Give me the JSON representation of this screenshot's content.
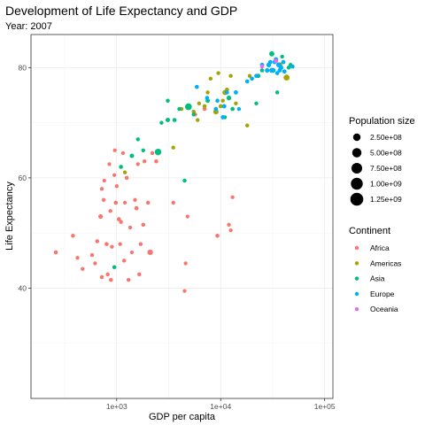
{
  "chart_data": {
    "type": "scatter",
    "title": "Development of Life Expectancy and GDP",
    "subtitle": "Year: 2007",
    "xlabel": "GDP per capita",
    "ylabel": "Life Expectancy",
    "x_scale": "log10",
    "xlim": [
      150,
      120000
    ],
    "ylim": [
      20,
      86
    ],
    "x_ticks": [
      {
        "value": 1000,
        "label": "1e+03"
      },
      {
        "value": 10000,
        "label": "1e+04"
      },
      {
        "value": 100000,
        "label": "1e+05"
      }
    ],
    "y_ticks": [
      {
        "value": 40,
        "label": "40"
      },
      {
        "value": 60,
        "label": "60"
      },
      {
        "value": 80,
        "label": "80"
      }
    ],
    "grid": true,
    "size_legend": {
      "title": "Population size",
      "entries": [
        {
          "value": 250000000,
          "label": "2.50e+08"
        },
        {
          "value": 500000000,
          "label": "5.00e+08"
        },
        {
          "value": 750000000,
          "label": "7.50e+08"
        },
        {
          "value": 1000000000,
          "label": "1.00e+09"
        },
        {
          "value": 1250000000,
          "label": "1.25e+09"
        }
      ]
    },
    "color_legend": {
      "title": "Continent",
      "entries": [
        {
          "name": "Africa",
          "color": "#F8766D"
        },
        {
          "name": "Americas",
          "color": "#A3A500"
        },
        {
          "name": "Asia",
          "color": "#00BF7D"
        },
        {
          "name": "Europe",
          "color": "#00B0F6"
        },
        {
          "name": "Oceania",
          "color": "#E76BF3"
        }
      ]
    },
    "series": [
      {
        "name": "Africa",
        "color": "#F8766D",
        "points": [
          [
            260,
            46.5,
            15
          ],
          [
            420,
            45.5,
            8
          ],
          [
            470,
            43.5,
            10
          ],
          [
            380,
            49.5,
            12
          ],
          [
            580,
            46.0,
            10
          ],
          [
            620,
            44.5,
            8
          ],
          [
            650,
            48.5,
            12
          ],
          [
            700,
            53.0,
            30
          ],
          [
            720,
            58.0,
            9
          ],
          [
            720,
            42.0,
            11
          ],
          [
            750,
            56.0,
            9
          ],
          [
            760,
            59.5,
            8
          ],
          [
            800,
            48.0,
            15
          ],
          [
            820,
            42.5,
            10
          ],
          [
            850,
            62.5,
            7
          ],
          [
            870,
            54.0,
            9
          ],
          [
            880,
            41.5,
            12
          ],
          [
            900,
            47.5,
            9
          ],
          [
            950,
            60.5,
            7
          ],
          [
            960,
            65.0,
            8
          ],
          [
            980,
            55.5,
            15
          ],
          [
            1000,
            58.5,
            10
          ],
          [
            1050,
            52.5,
            15
          ],
          [
            1080,
            48.0,
            9
          ],
          [
            1100,
            52.0,
            9
          ],
          [
            1150,
            64.5,
            8
          ],
          [
            1180,
            45.0,
            12
          ],
          [
            1200,
            55.5,
            7
          ],
          [
            1250,
            60.0,
            14
          ],
          [
            1300,
            41.5,
            10
          ],
          [
            1350,
            51.0,
            9
          ],
          [
            1400,
            46.5,
            7
          ],
          [
            1500,
            56.0,
            9
          ],
          [
            1550,
            54.5,
            20
          ],
          [
            1600,
            62.5,
            7
          ],
          [
            1650,
            42.5,
            11
          ],
          [
            1700,
            48.0,
            10
          ],
          [
            1800,
            51.5,
            12
          ],
          [
            1850,
            63.0,
            11
          ],
          [
            2000,
            55.5,
            12
          ],
          [
            2100,
            46.5,
            80
          ],
          [
            2200,
            64.5,
            10
          ],
          [
            2400,
            63.0,
            12
          ],
          [
            3500,
            55.5,
            10
          ],
          [
            4500,
            39.5,
            7
          ],
          [
            4600,
            44.5,
            8
          ],
          [
            4800,
            53.0,
            7
          ],
          [
            5700,
            71.5,
            8
          ],
          [
            7000,
            72.5,
            12
          ],
          [
            9300,
            49.5,
            15
          ],
          [
            12000,
            51.5,
            9
          ],
          [
            12500,
            50.5,
            7
          ],
          [
            13000,
            56.5,
            7
          ]
        ]
      },
      {
        "name": "Americas",
        "color": "#A3A500",
        "points": [
          [
            1200,
            61.0,
            10
          ],
          [
            3500,
            65.5,
            10
          ],
          [
            4200,
            72.5,
            10
          ],
          [
            5500,
            72.0,
            12
          ],
          [
            6000,
            70.5,
            10
          ],
          [
            6200,
            73.5,
            10
          ],
          [
            7000,
            73.0,
            15
          ],
          [
            7500,
            75.5,
            10
          ],
          [
            8000,
            78.0,
            10
          ],
          [
            9000,
            72.0,
            70
          ],
          [
            9500,
            79.0,
            10
          ],
          [
            10000,
            73.0,
            15
          ],
          [
            10500,
            74.0,
            10
          ],
          [
            11000,
            75.5,
            60
          ],
          [
            11500,
            76.0,
            15
          ],
          [
            12500,
            78.5,
            10
          ],
          [
            13000,
            72.5,
            10
          ],
          [
            14000,
            73.5,
            10
          ],
          [
            18000,
            69.5,
            10
          ],
          [
            19000,
            78.5,
            10
          ],
          [
            37000,
            80.5,
            60
          ],
          [
            43000,
            78.2,
            110
          ]
        ]
      },
      {
        "name": "Asia",
        "color": "#00BF7D",
        "points": [
          [
            950,
            43.8,
            15
          ],
          [
            1100,
            62.0,
            15
          ],
          [
            1400,
            64.0,
            25
          ],
          [
            1600,
            67.0,
            12
          ],
          [
            1800,
            65.0,
            10
          ],
          [
            2500,
            64.7,
            160
          ],
          [
            2700,
            70.0,
            10
          ],
          [
            3100,
            70.5,
            25
          ],
          [
            3100,
            74.0,
            12
          ],
          [
            3600,
            70.5,
            15
          ],
          [
            4000,
            72.5,
            10
          ],
          [
            4500,
            59.5,
            12
          ],
          [
            4900,
            72.9,
            180
          ],
          [
            5500,
            71.5,
            10
          ],
          [
            7500,
            74.0,
            25
          ],
          [
            9000,
            72.5,
            10
          ],
          [
            11000,
            71.0,
            10
          ],
          [
            12000,
            74.5,
            40
          ],
          [
            13000,
            72.5,
            15
          ],
          [
            22000,
            73.5,
            10
          ],
          [
            23000,
            78.5,
            20
          ],
          [
            25000,
            79.5,
            15
          ],
          [
            29000,
            80.5,
            10
          ],
          [
            31000,
            82.5,
            60
          ],
          [
            35000,
            75.5,
            10
          ],
          [
            39000,
            82.0,
            10
          ],
          [
            45000,
            80.0,
            10
          ],
          [
            47000,
            80.5,
            10
          ]
        ]
      },
      {
        "name": "Europe",
        "color": "#00B0F6",
        "points": [
          [
            5900,
            76.5,
            15
          ],
          [
            7400,
            74.5,
            15
          ],
          [
            9000,
            72.5,
            15
          ],
          [
            9300,
            74.0,
            15
          ],
          [
            10500,
            71.0,
            20
          ],
          [
            10800,
            73.0,
            25
          ],
          [
            11500,
            75.5,
            15
          ],
          [
            14000,
            75.5,
            20
          ],
          [
            15000,
            72.5,
            10
          ],
          [
            18000,
            77.5,
            15
          ],
          [
            20000,
            78.0,
            15
          ],
          [
            22000,
            78.5,
            15
          ],
          [
            25000,
            80.5,
            20
          ],
          [
            28000,
            79.5,
            30
          ],
          [
            29000,
            80.5,
            40
          ],
          [
            30000,
            81.0,
            20
          ],
          [
            31000,
            79.5,
            50
          ],
          [
            32000,
            79.5,
            40
          ],
          [
            33000,
            81.0,
            20
          ],
          [
            34000,
            81.5,
            30
          ],
          [
            35000,
            79.0,
            15
          ],
          [
            36000,
            80.5,
            40
          ],
          [
            37000,
            79.5,
            20
          ],
          [
            38000,
            80.0,
            40
          ],
          [
            40000,
            81.0,
            20
          ],
          [
            41000,
            79.3,
            20
          ],
          [
            49000,
            80.2,
            20
          ]
        ]
      },
      {
        "name": "Oceania",
        "color": "#E76BF3",
        "points": [
          [
            25000,
            80.2,
            15
          ],
          [
            34000,
            81.2,
            25
          ]
        ]
      }
    ]
  }
}
